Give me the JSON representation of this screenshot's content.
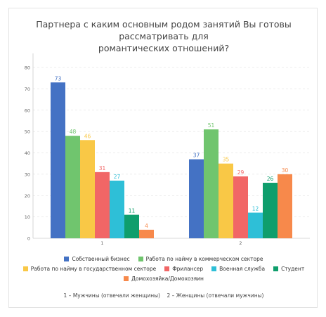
{
  "chart_data": {
    "type": "bar",
    "title_line1": "Партнера с каким основным родом занятий Вы готовы рассматривать для",
    "title_line2": "романтических отношений?",
    "categories": [
      "1",
      "2"
    ],
    "ylim": [
      0,
      80
    ],
    "yticks": [
      0,
      10,
      20,
      30,
      40,
      50,
      60,
      70,
      80
    ],
    "grid": true,
    "legend_position": "bottom",
    "series": [
      {
        "name": "Собственный бизнес",
        "color": "#4472c4",
        "values": [
          73,
          37
        ]
      },
      {
        "name": "Работа по найму в коммерческом секторе",
        "color": "#70c56e",
        "values": [
          48,
          51
        ]
      },
      {
        "name": "Работа по найму в государственном секторе",
        "color": "#f9c846",
        "values": [
          46,
          35
        ]
      },
      {
        "name": "Фрилансер",
        "color": "#f16666",
        "values": [
          31,
          29
        ]
      },
      {
        "name": "Военная служба",
        "color": "#2ebfd7",
        "values": [
          27,
          12
        ]
      },
      {
        "name": "Студент",
        "color": "#0f9e6c",
        "values": [
          11,
          26
        ]
      },
      {
        "name": "Домохозяйка/Домохозяин",
        "color": "#f7894b",
        "values": [
          4,
          30
        ]
      }
    ],
    "footnote": "1 – Мужчины (отвечали женщины)    2 – Женщины (отвечали мужчины)"
  }
}
